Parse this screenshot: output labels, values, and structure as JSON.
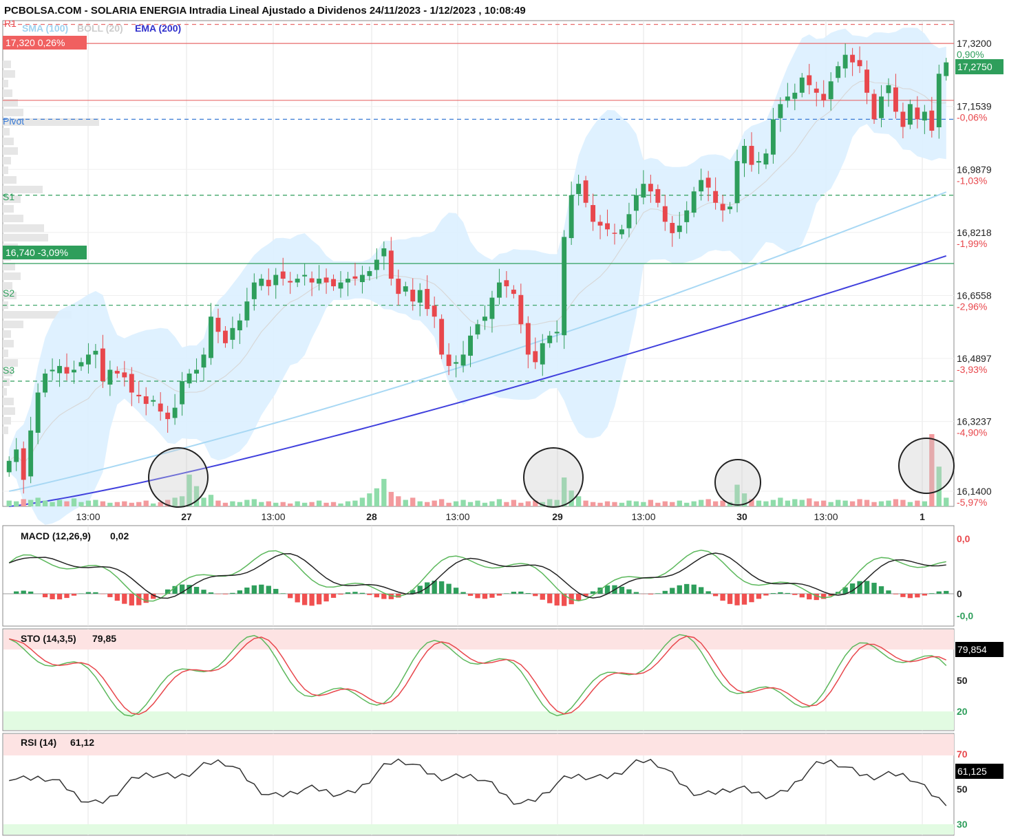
{
  "title": "PCBOLSA.COM - SOLARIA ENERGIA Intradia Lineal Ajustado a Dividenos 24/11/2023 - 1/12/2023 , 10:08:49",
  "legend": {
    "r1": "R1",
    "sma": "SMA (100)",
    "boll": "BOLL (20)",
    "ema": "EMA (200)"
  },
  "level_tags": {
    "r1_price": "17,320  0,26%",
    "bottom_price": "16,740  -3,09%",
    "last_pct": "0,90%",
    "last_price": "17,2750"
  },
  "colors": {
    "up": "#2e9e5b",
    "down": "#e8474c",
    "sma": "#a8d8f4",
    "ema": "#4040dd",
    "boll_fill": "#dcefff",
    "resistance": "#e86b6b",
    "support": "#2e9e5b",
    "pivot": "#3a7bd5"
  },
  "chart_data": [
    {
      "type": "candlestick",
      "title": "SOLARIA ENERGIA Intradia",
      "x_ticks": [
        "13:00",
        "27",
        "13:00",
        "28",
        "13:00",
        "29",
        "13:00",
        "30",
        "13:00",
        "1"
      ],
      "y_ticks": [
        {
          "value": 17.32,
          "label": "17,3200",
          "pct": ""
        },
        {
          "value": 17.1539,
          "label": "17,1539",
          "pct": "-0,06%"
        },
        {
          "value": 16.9879,
          "label": "16,9879",
          "pct": "-1,03%"
        },
        {
          "value": 16.8218,
          "label": "16,8218",
          "pct": "-1,99%"
        },
        {
          "value": 16.6558,
          "label": "16,6558",
          "pct": "-2,96%"
        },
        {
          "value": 16.4897,
          "label": "16,4897",
          "pct": "-3,93%"
        },
        {
          "value": 16.3237,
          "label": "16,3237",
          "pct": "-4,90%"
        },
        {
          "value": 16.14,
          "label": "16,1400",
          "pct": "-5,97%"
        }
      ],
      "ylim": [
        16.1,
        17.38
      ],
      "levels": [
        {
          "name": "R1",
          "value": 17.37,
          "style": "dashed",
          "color": "#e86b6b"
        },
        {
          "name": "",
          "value": 17.32,
          "style": "solid",
          "color": "#e86b6b"
        },
        {
          "name": "",
          "value": 17.17,
          "style": "solid",
          "color": "#e86b6b"
        },
        {
          "name": "Pivot",
          "value": 17.12,
          "style": "dashed",
          "color": "#3a7bd5"
        },
        {
          "name": "S1",
          "value": 16.92,
          "style": "dashed",
          "color": "#2e9e5b"
        },
        {
          "name": "",
          "value": 16.74,
          "style": "solid",
          "color": "#2e9e5b"
        },
        {
          "name": "S2",
          "value": 16.63,
          "style": "dashed",
          "color": "#2e9e5b"
        },
        {
          "name": "S3",
          "value": 16.43,
          "style": "dashed",
          "color": "#2e9e5b"
        }
      ],
      "close": [
        16.22,
        16.25,
        16.17,
        16.3,
        16.4,
        16.45,
        16.46,
        16.47,
        16.45,
        16.46,
        16.48,
        16.5,
        16.51,
        16.43,
        16.46,
        16.45,
        16.44,
        16.4,
        16.39,
        16.37,
        16.38,
        16.35,
        16.33,
        16.36,
        16.43,
        16.45,
        16.46,
        16.5,
        16.6,
        16.56,
        16.53,
        16.57,
        16.59,
        16.64,
        16.69,
        16.7,
        16.68,
        16.71,
        16.7,
        16.69,
        16.7,
        16.71,
        16.69,
        16.7,
        16.69,
        16.68,
        16.69,
        16.7,
        16.7,
        16.71,
        16.72,
        16.75,
        16.78,
        16.7,
        16.66,
        16.68,
        16.64,
        16.67,
        16.62,
        16.6,
        16.5,
        16.47,
        16.48,
        16.5,
        16.55,
        16.58,
        16.6,
        16.65,
        16.69,
        16.68,
        16.66,
        16.58,
        16.5,
        16.48,
        16.53,
        16.55,
        16.56,
        16.81,
        16.92,
        16.95,
        16.9,
        16.85,
        16.84,
        16.83,
        16.82,
        16.83,
        16.87,
        16.92,
        16.95,
        16.93,
        16.9,
        16.85,
        16.82,
        16.84,
        16.88,
        16.93,
        16.96,
        16.94,
        16.9,
        16.88,
        16.89,
        17.01,
        17.05,
        17.0,
        17.01,
        17.03,
        17.12,
        17.16,
        17.18,
        17.19,
        17.23,
        17.21,
        17.19,
        17.17,
        17.22,
        17.26,
        17.29,
        17.27,
        17.26,
        17.19,
        17.12,
        17.18,
        17.21,
        17.14,
        17.1,
        17.16,
        17.12,
        17.14,
        17.09,
        17.24,
        17.27
      ],
      "volume": [
        8,
        7,
        10,
        9,
        12,
        8,
        6,
        9,
        7,
        11,
        6,
        8,
        9,
        7,
        5,
        6,
        7,
        5,
        6,
        8,
        4,
        6,
        9,
        12,
        14,
        44,
        28,
        12,
        16,
        8,
        5,
        7,
        6,
        9,
        10,
        6,
        7,
        5,
        6,
        4,
        7,
        5,
        6,
        8,
        5,
        6,
        4,
        7,
        8,
        12,
        18,
        25,
        38,
        20,
        14,
        9,
        12,
        7,
        6,
        8,
        10,
        5,
        7,
        9,
        6,
        8,
        5,
        7,
        10,
        6,
        9,
        5,
        7,
        8,
        6,
        10,
        9,
        40,
        22,
        14,
        8,
        6,
        5,
        7,
        6,
        5,
        8,
        7,
        6,
        9,
        5,
        7,
        6,
        8,
        5,
        7,
        9,
        10,
        7,
        8,
        6,
        30,
        18,
        10,
        8,
        7,
        9,
        12,
        8,
        10,
        9,
        11,
        7,
        8,
        6,
        9,
        8,
        7,
        10,
        9,
        6,
        7,
        8,
        10,
        9,
        6,
        8,
        7,
        100,
        55,
        12
      ],
      "pivot": "Pivot",
      "s1": "S1",
      "s2": "S2",
      "s3": "S3"
    },
    {
      "type": "line",
      "title": "MACD (12,26,9)",
      "last_value": "0,02",
      "y_ticks": [
        "0,0",
        "0",
        "-0,0"
      ]
    },
    {
      "type": "line",
      "title": "STO (14,3,5)",
      "last_value": "79,85",
      "last_tag": "79,854",
      "y_ticks": [
        "50",
        "20"
      ],
      "zones": {
        "overbought": 80,
        "oversold": 20
      }
    },
    {
      "type": "line",
      "title": "RSI (14)",
      "last_value": "61,12",
      "last_tag": "61,125",
      "y_ticks": [
        "70",
        "50",
        "30"
      ],
      "zones": {
        "overbought": 70,
        "oversold": 30
      }
    }
  ]
}
